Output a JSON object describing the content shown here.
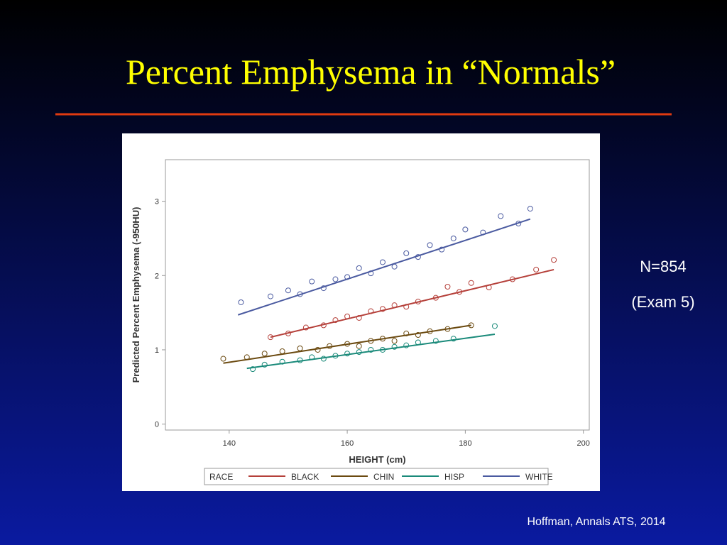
{
  "title": "Percent Emphysema in “Normals”",
  "annotations": [
    "N=854",
    "(Exam 5)"
  ],
  "citation": "Hoffman, Annals ATS, 2014",
  "chart_data": {
    "type": "scatter",
    "xlabel": "HEIGHT (cm)",
    "ylabel": "Predicted Percent Emphysema (-950HU)",
    "legend_title": "RACE",
    "xlim": [
      129.2,
      201
    ],
    "ylim": [
      -0.08,
      3.56
    ],
    "xticks": [
      140,
      160,
      180,
      200
    ],
    "yticks": [
      0,
      1,
      2,
      3
    ],
    "series": [
      {
        "name": "BLACK",
        "color": "#b5403a",
        "x": [
          147,
          150,
          153,
          156,
          158,
          160,
          162,
          164,
          166,
          168,
          170,
          172,
          175,
          177,
          179,
          181,
          184,
          188,
          192,
          195
        ],
        "values": [
          1.17,
          1.22,
          1.3,
          1.33,
          1.4,
          1.45,
          1.43,
          1.52,
          1.55,
          1.6,
          1.58,
          1.65,
          1.7,
          1.85,
          1.78,
          1.9,
          1.84,
          1.95,
          2.08,
          2.21
        ],
        "fit_x": [
          147,
          195
        ],
        "fit_values": [
          1.17,
          2.08
        ]
      },
      {
        "name": "CHIN",
        "color": "#6b4a10",
        "x": [
          139,
          143,
          146,
          149,
          152,
          155,
          157,
          160,
          162,
          164,
          166,
          168,
          170,
          172,
          174,
          177,
          181
        ],
        "values": [
          0.88,
          0.9,
          0.95,
          0.98,
          1.02,
          1.0,
          1.05,
          1.08,
          1.05,
          1.12,
          1.15,
          1.12,
          1.22,
          1.2,
          1.25,
          1.28,
          1.33
        ],
        "fit_x": [
          139,
          181
        ],
        "fit_values": [
          0.82,
          1.33
        ]
      },
      {
        "name": "HISP",
        "color": "#1a8a7a",
        "x": [
          144,
          146,
          149,
          152,
          154,
          156,
          158,
          160,
          162,
          164,
          166,
          168,
          170,
          172,
          175,
          178,
          185
        ],
        "values": [
          0.74,
          0.8,
          0.84,
          0.86,
          0.9,
          0.88,
          0.92,
          0.95,
          0.97,
          1.0,
          1.0,
          1.04,
          1.06,
          1.1,
          1.12,
          1.15,
          1.32
        ],
        "fit_x": [
          143,
          185
        ],
        "fit_values": [
          0.75,
          1.21
        ]
      },
      {
        "name": "WHITE",
        "color": "#4a5aa0",
        "x": [
          142,
          147,
          150,
          152,
          154,
          156,
          158,
          160,
          162,
          164,
          166,
          168,
          170,
          172,
          174,
          176,
          178,
          180,
          183,
          186,
          189,
          191
        ],
        "values": [
          1.64,
          1.72,
          1.8,
          1.75,
          1.92,
          1.83,
          1.95,
          1.98,
          2.1,
          2.03,
          2.18,
          2.12,
          2.3,
          2.25,
          2.41,
          2.35,
          2.5,
          2.62,
          2.58,
          2.8,
          2.7,
          2.9
        ],
        "fit_x": [
          141.5,
          191
        ],
        "fit_values": [
          1.47,
          2.76
        ]
      }
    ]
  }
}
